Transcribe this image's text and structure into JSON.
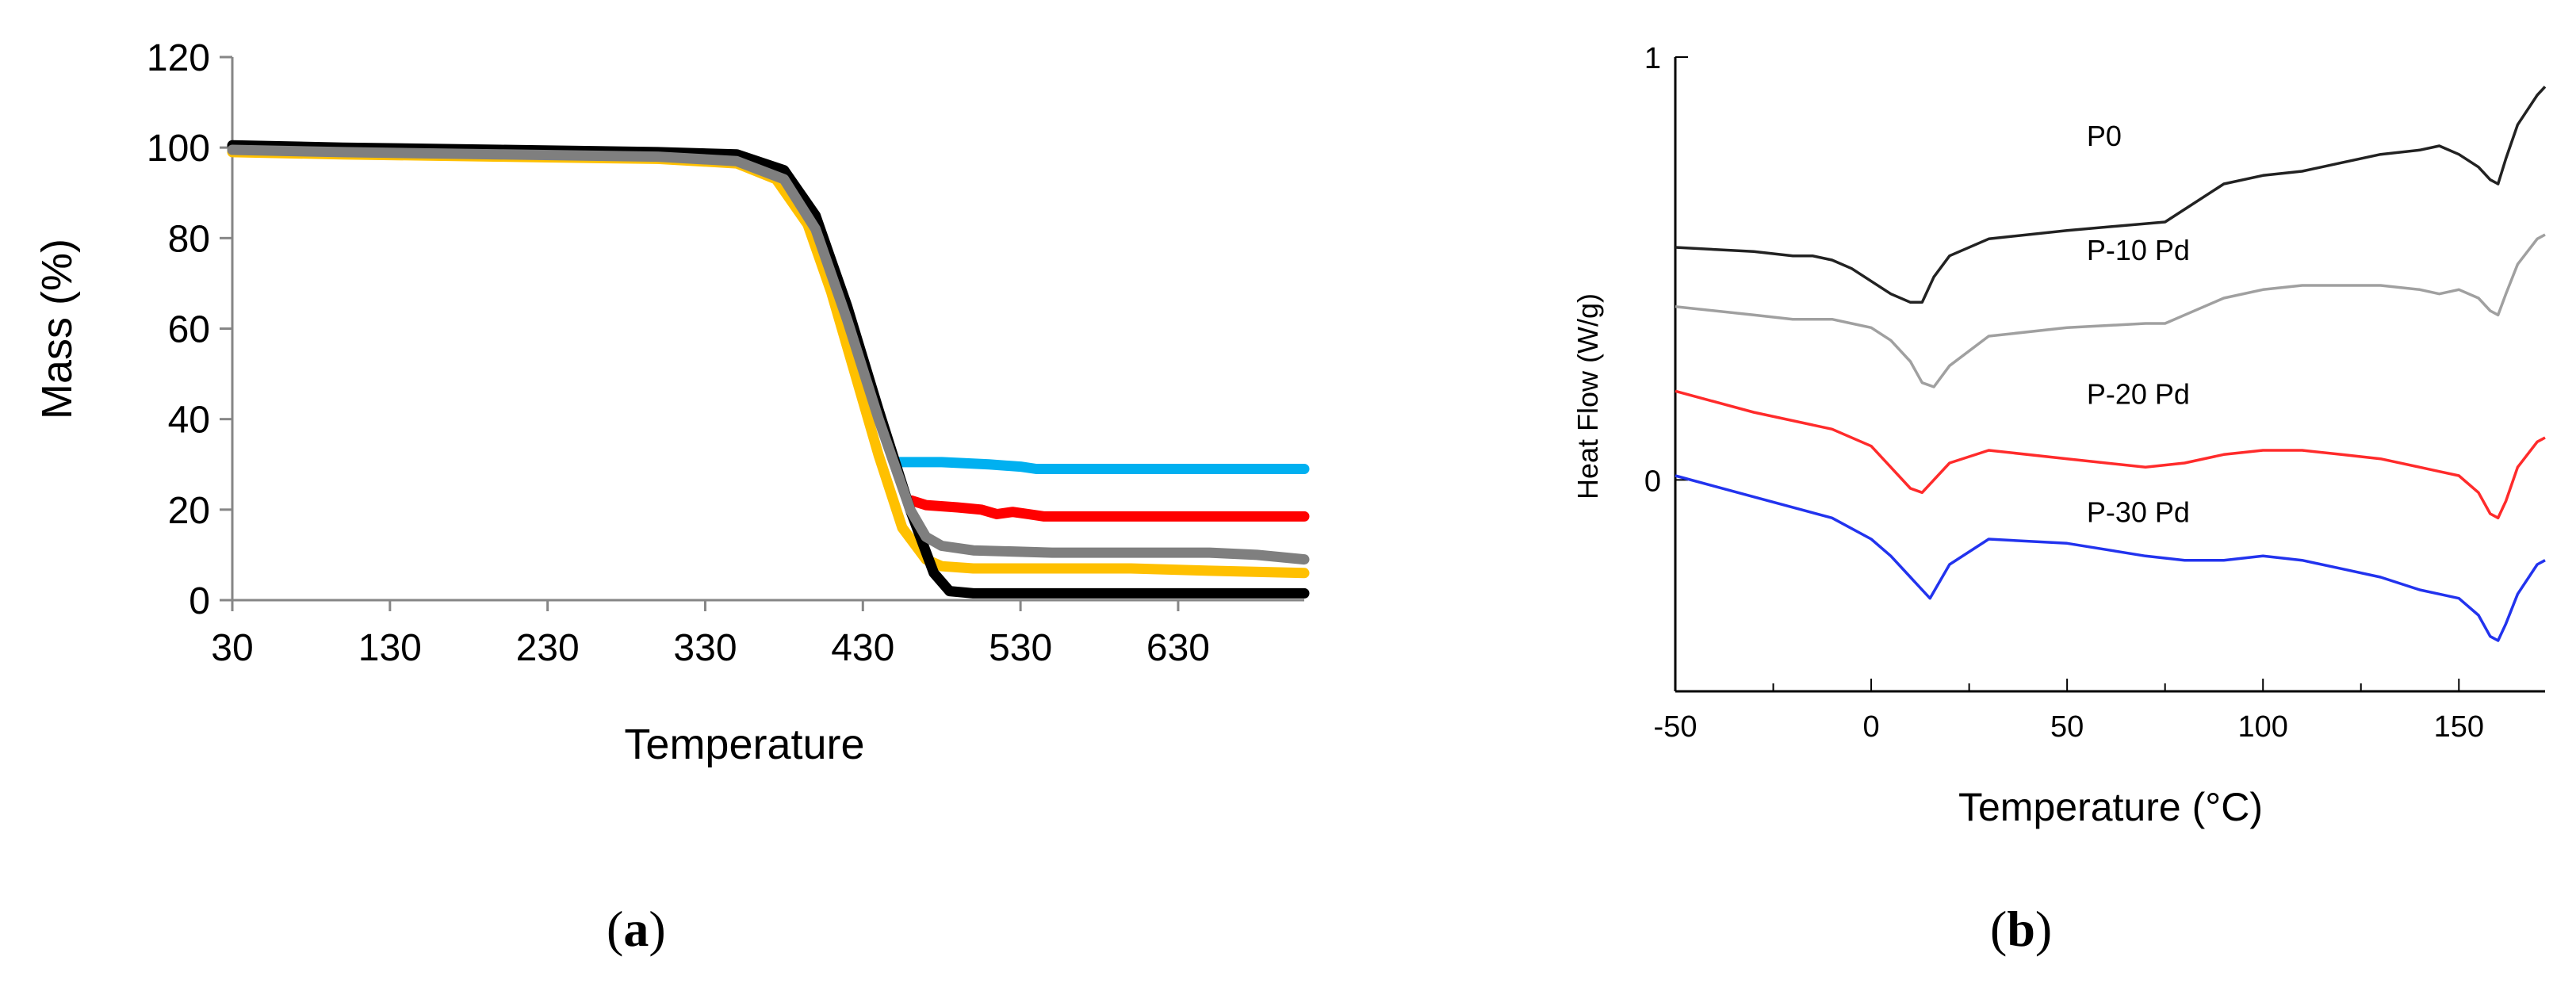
{
  "chart_data": [
    {
      "id": "a",
      "type": "line",
      "panel_label": "a",
      "title": "",
      "xlabel": "Temperature",
      "ylabel": "Mass (%)",
      "xlim": [
        30,
        710
      ],
      "ylim": [
        0,
        120
      ],
      "xticks": [
        30,
        130,
        230,
        330,
        430,
        530,
        630
      ],
      "yticks": [
        0,
        20,
        40,
        60,
        80,
        100,
        120
      ],
      "grid": false,
      "legend": "none",
      "series": [
        {
          "name": "black",
          "color": "#000000",
          "x": [
            30,
            100,
            200,
            300,
            350,
            380,
            400,
            420,
            440,
            460,
            475,
            485,
            500,
            550,
            600,
            650,
            710
          ],
          "y": [
            100.5,
            100,
            99.5,
            99,
            98.5,
            95,
            85,
            65,
            42,
            20,
            6,
            2,
            1.5,
            1.5,
            1.5,
            1.5,
            1.5
          ]
        },
        {
          "name": "gray",
          "color": "#7f7f7f",
          "x": [
            30,
            100,
            200,
            300,
            350,
            380,
            400,
            420,
            440,
            460,
            470,
            480,
            500,
            550,
            600,
            650,
            680,
            710
          ],
          "y": [
            99.5,
            99,
            98.5,
            98,
            97,
            93,
            82,
            62,
            40,
            20,
            14,
            12,
            11,
            10.5,
            10.5,
            10.5,
            10,
            9
          ]
        },
        {
          "name": "yellow",
          "color": "#ffc000",
          "x": [
            30,
            100,
            200,
            300,
            350,
            375,
            395,
            410,
            425,
            440,
            455,
            470,
            480,
            500,
            550,
            600,
            650,
            710
          ],
          "y": [
            99,
            98.5,
            98,
            97.5,
            96.5,
            93,
            83,
            68,
            50,
            32,
            16,
            9,
            7.5,
            7,
            7,
            7,
            6.5,
            6
          ]
        },
        {
          "name": "cyan",
          "color": "#00b0f0",
          "x": [
            452,
            480,
            510,
            530,
            540,
            600,
            660,
            710
          ],
          "y": [
            30.5,
            30.5,
            30,
            29.5,
            29,
            29,
            29,
            29
          ]
        },
        {
          "name": "red",
          "color": "#ff0000",
          "x": [
            461,
            470,
            490,
            505,
            515,
            525,
            535,
            545,
            600,
            660,
            710
          ],
          "y": [
            22,
            21,
            20.5,
            20,
            19,
            19.5,
            19,
            18.5,
            18.5,
            18.5,
            18.5
          ]
        }
      ]
    },
    {
      "id": "b",
      "type": "line",
      "panel_label": "b",
      "title": "",
      "xlabel": "Temperature (°C)",
      "ylabel": "Heat Flow (W/g)",
      "xlim": [
        -50,
        172
      ],
      "ylim": [
        -0.5,
        1
      ],
      "xticks": [
        -50,
        0,
        50,
        100,
        150
      ],
      "yticks": [
        0,
        1
      ],
      "grid": false,
      "legend": "none",
      "annotations": [
        {
          "text": "P0",
          "x": 55,
          "y": 0.79
        },
        {
          "text": "P-10 Pd",
          "x": 55,
          "y": 0.52
        },
        {
          "text": "P-20 Pd",
          "x": 55,
          "y": 0.18
        },
        {
          "text": "P-30 Pd",
          "x": 55,
          "y": -0.1
        }
      ],
      "series": [
        {
          "name": "P0",
          "color": "#222222",
          "x": [
            -50,
            -30,
            -20,
            -15,
            -10,
            -5,
            0,
            5,
            10,
            13,
            16,
            20,
            30,
            50,
            75,
            80,
            90,
            100,
            110,
            120,
            130,
            140,
            145,
            150,
            155,
            158,
            160,
            162,
            165,
            170,
            172
          ],
          "y": [
            0.55,
            0.54,
            0.53,
            0.53,
            0.52,
            0.5,
            0.47,
            0.44,
            0.42,
            0.42,
            0.48,
            0.53,
            0.57,
            0.59,
            0.61,
            0.64,
            0.7,
            0.72,
            0.73,
            0.75,
            0.77,
            0.78,
            0.79,
            0.77,
            0.74,
            0.71,
            0.7,
            0.76,
            0.84,
            0.91,
            0.93
          ]
        },
        {
          "name": "P-10 Pd",
          "color": "#a0a0a0",
          "x": [
            -50,
            -30,
            -20,
            -10,
            -5,
            0,
            5,
            10,
            13,
            16,
            20,
            30,
            50,
            70,
            75,
            80,
            90,
            100,
            110,
            120,
            130,
            140,
            145,
            150,
            155,
            158,
            160,
            162,
            165,
            170,
            172
          ],
          "y": [
            0.41,
            0.39,
            0.38,
            0.38,
            0.37,
            0.36,
            0.33,
            0.28,
            0.23,
            0.22,
            0.27,
            0.34,
            0.36,
            0.37,
            0.37,
            0.39,
            0.43,
            0.45,
            0.46,
            0.46,
            0.46,
            0.45,
            0.44,
            0.45,
            0.43,
            0.4,
            0.39,
            0.44,
            0.51,
            0.57,
            0.58
          ]
        },
        {
          "name": "P-20 Pd",
          "color": "#ff2b2b",
          "x": [
            -50,
            -30,
            -10,
            0,
            5,
            10,
            13,
            16,
            20,
            30,
            50,
            70,
            80,
            90,
            100,
            110,
            120,
            130,
            140,
            145,
            150,
            155,
            158,
            160,
            162,
            165,
            170,
            172
          ],
          "y": [
            0.21,
            0.16,
            0.12,
            0.08,
            0.03,
            -0.02,
            -0.03,
            0.0,
            0.04,
            0.07,
            0.05,
            0.03,
            0.04,
            0.06,
            0.07,
            0.07,
            0.06,
            0.05,
            0.03,
            0.02,
            0.01,
            -0.03,
            -0.08,
            -0.09,
            -0.05,
            0.03,
            0.09,
            0.1
          ]
        },
        {
          "name": "P-30 Pd",
          "color": "#2233ee",
          "x": [
            -50,
            -30,
            -10,
            0,
            5,
            10,
            15,
            20,
            30,
            50,
            70,
            80,
            90,
            100,
            110,
            120,
            130,
            140,
            145,
            150,
            155,
            158,
            160,
            162,
            165,
            170,
            172
          ],
          "y": [
            0.01,
            -0.04,
            -0.09,
            -0.14,
            -0.18,
            -0.23,
            -0.28,
            -0.2,
            -0.14,
            -0.15,
            -0.18,
            -0.19,
            -0.19,
            -0.18,
            -0.19,
            -0.21,
            -0.23,
            -0.26,
            -0.27,
            -0.28,
            -0.32,
            -0.37,
            -0.38,
            -0.34,
            -0.27,
            -0.2,
            -0.19
          ]
        }
      ]
    }
  ]
}
